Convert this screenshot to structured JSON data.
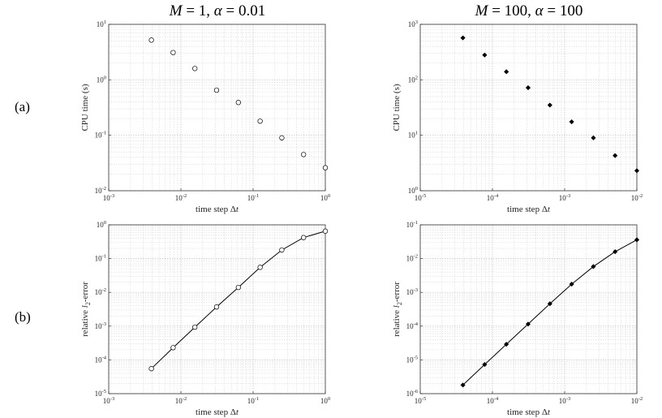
{
  "row_labels": [
    "(a)",
    "(b)"
  ],
  "column_titles": [
    {
      "m_label": "M",
      "m_value": "= 1,",
      "a_label": "α",
      "a_value": "= 0.01"
    },
    {
      "m_label": "M",
      "m_value": "= 100,",
      "a_label": "α",
      "a_value": "= 100"
    }
  ],
  "chart_data": [
    {
      "id": "a-left",
      "type": "scatter",
      "marker": "open-circle",
      "xlabel": "time step Δt",
      "ylabel": "CPU time (s)",
      "xscale": "log",
      "yscale": "log",
      "xlim": [
        0.001,
        1
      ],
      "ylim": [
        0.01,
        10
      ],
      "xticks": [
        "10^-3",
        "10^-2",
        "10^-1",
        "10^0"
      ],
      "yticks": [
        "10^-2",
        "10^-1",
        "10^0",
        "10^1"
      ],
      "x": [
        0.0039,
        0.0078,
        0.0156,
        0.0312,
        0.0625,
        0.125,
        0.25,
        0.5,
        1
      ],
      "y": [
        5.2,
        3.1,
        1.6,
        0.65,
        0.39,
        0.18,
        0.09,
        0.045,
        0.026
      ]
    },
    {
      "id": "a-right",
      "type": "scatter",
      "marker": "filled-diamond",
      "xlabel": "time step Δt",
      "ylabel": "CPU time (s)",
      "xscale": "log",
      "yscale": "log",
      "xlim": [
        1e-05,
        0.01
      ],
      "ylim": [
        1,
        1000
      ],
      "xticks": [
        "10^-5",
        "10^-4",
        "10^-3",
        "10^-2"
      ],
      "yticks": [
        "10^0",
        "10^1",
        "10^2",
        "10^3"
      ],
      "x": [
        3.9e-05,
        7.8e-05,
        0.000156,
        0.000312,
        0.000625,
        0.00125,
        0.0025,
        0.005,
        0.01
      ],
      "y": [
        570,
        280,
        140,
        72,
        35,
        17.5,
        9,
        4.3,
        2.3
      ]
    },
    {
      "id": "b-left",
      "type": "line",
      "marker": "open-circle",
      "xlabel": "time step Δt",
      "ylabel": "relative l2-error",
      "xscale": "log",
      "yscale": "log",
      "xlim": [
        0.001,
        1
      ],
      "ylim": [
        1e-05,
        1
      ],
      "xticks": [
        "10^-3",
        "10^-2",
        "10^-1",
        "10^0"
      ],
      "yticks": [
        "10^-5",
        "10^-4",
        "10^-3",
        "10^-2",
        "10^-1",
        "10^0"
      ],
      "x": [
        0.0039,
        0.0078,
        0.0156,
        0.0312,
        0.0625,
        0.125,
        0.25,
        0.5,
        1
      ],
      "y": [
        5.5e-05,
        0.00023,
        0.00093,
        0.0037,
        0.014,
        0.055,
        0.18,
        0.42,
        0.65
      ]
    },
    {
      "id": "b-right",
      "type": "line",
      "marker": "filled-diamond",
      "xlabel": "time step Δt",
      "ylabel": "relative l2-error",
      "xscale": "log",
      "yscale": "log",
      "xlim": [
        1e-05,
        0.01
      ],
      "ylim": [
        1e-06,
        0.1
      ],
      "xticks": [
        "10^-5",
        "10^-4",
        "10^-3",
        "10^-2"
      ],
      "yticks": [
        "10^-6",
        "10^-5",
        "10^-4",
        "10^-3",
        "10^-2",
        "10^-1"
      ],
      "x": [
        3.9e-05,
        7.8e-05,
        0.000156,
        0.000312,
        0.000625,
        0.00125,
        0.0025,
        0.005,
        0.01
      ],
      "y": [
        1.8e-06,
        7.3e-06,
        2.9e-05,
        0.000115,
        0.00046,
        0.00175,
        0.0058,
        0.016,
        0.036
      ]
    }
  ]
}
